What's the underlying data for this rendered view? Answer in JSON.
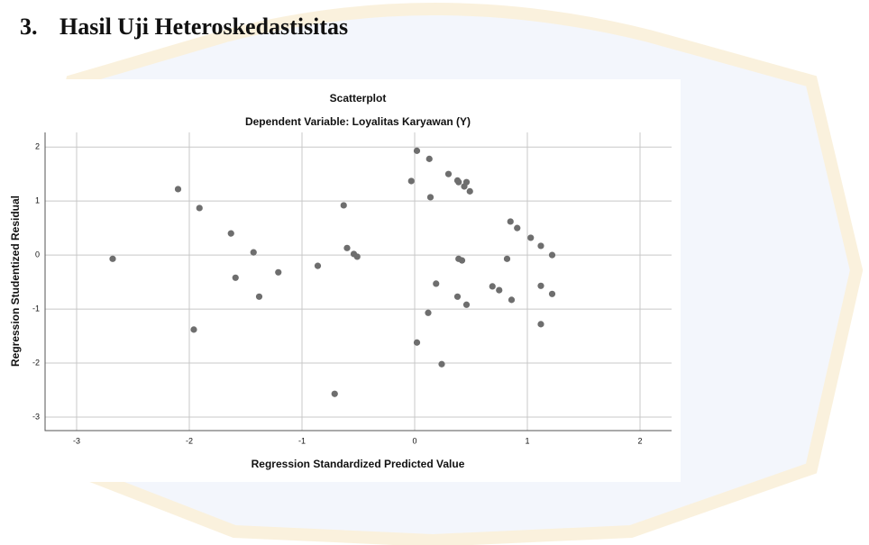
{
  "heading": {
    "number": "3.",
    "text": "Hasil Uji Heteroskedastisitas"
  },
  "chart_data": {
    "type": "scatter",
    "title": "Scatterplot",
    "subtitle": "Dependent Variable: Loyalitas Karyawan (Y)",
    "x_label": "Regression Standardized Predicted Value",
    "y_label": "Regression Studentized Residual",
    "x": [
      -2.68,
      -2.1,
      -1.91,
      -1.96,
      -1.63,
      -1.59,
      -1.43,
      -1.38,
      -1.21,
      -0.86,
      -0.63,
      -0.6,
      -0.54,
      -0.51,
      -0.71,
      -0.03,
      0.02,
      0.13,
      0.14,
      0.3,
      0.38,
      0.39,
      0.46,
      0.44,
      0.49,
      0.39,
      0.42,
      0.19,
      0.38,
      0.46,
      0.12,
      0.02,
      0.24,
      0.85,
      0.91,
      1.03,
      1.12,
      1.22,
      0.82,
      0.69,
      0.75,
      0.86,
      1.12,
      1.22,
      1.12
    ],
    "values": [
      -0.07,
      1.22,
      0.87,
      -1.38,
      0.4,
      -0.42,
      0.05,
      -0.77,
      -0.32,
      -0.2,
      0.92,
      0.13,
      0.02,
      -0.03,
      -2.57,
      1.37,
      1.93,
      1.78,
      1.07,
      1.5,
      1.38,
      1.35,
      1.35,
      1.27,
      1.18,
      -0.07,
      -0.1,
      -0.53,
      -0.77,
      -0.92,
      -1.07,
      -1.62,
      -2.02,
      0.62,
      0.5,
      0.32,
      0.17,
      0.0,
      -0.07,
      -0.58,
      -0.65,
      -0.83,
      -0.57,
      -0.72,
      -1.28
    ],
    "color": "#6e6e6e",
    "xlim": [
      -3.28,
      2.28
    ],
    "xticks": [
      -3,
      -2,
      -1,
      0,
      1,
      2
    ],
    "ylim": [
      -3.25,
      2.27
    ],
    "yticks": [
      -3,
      -2,
      -1,
      0,
      1,
      2
    ],
    "grid": true
  }
}
